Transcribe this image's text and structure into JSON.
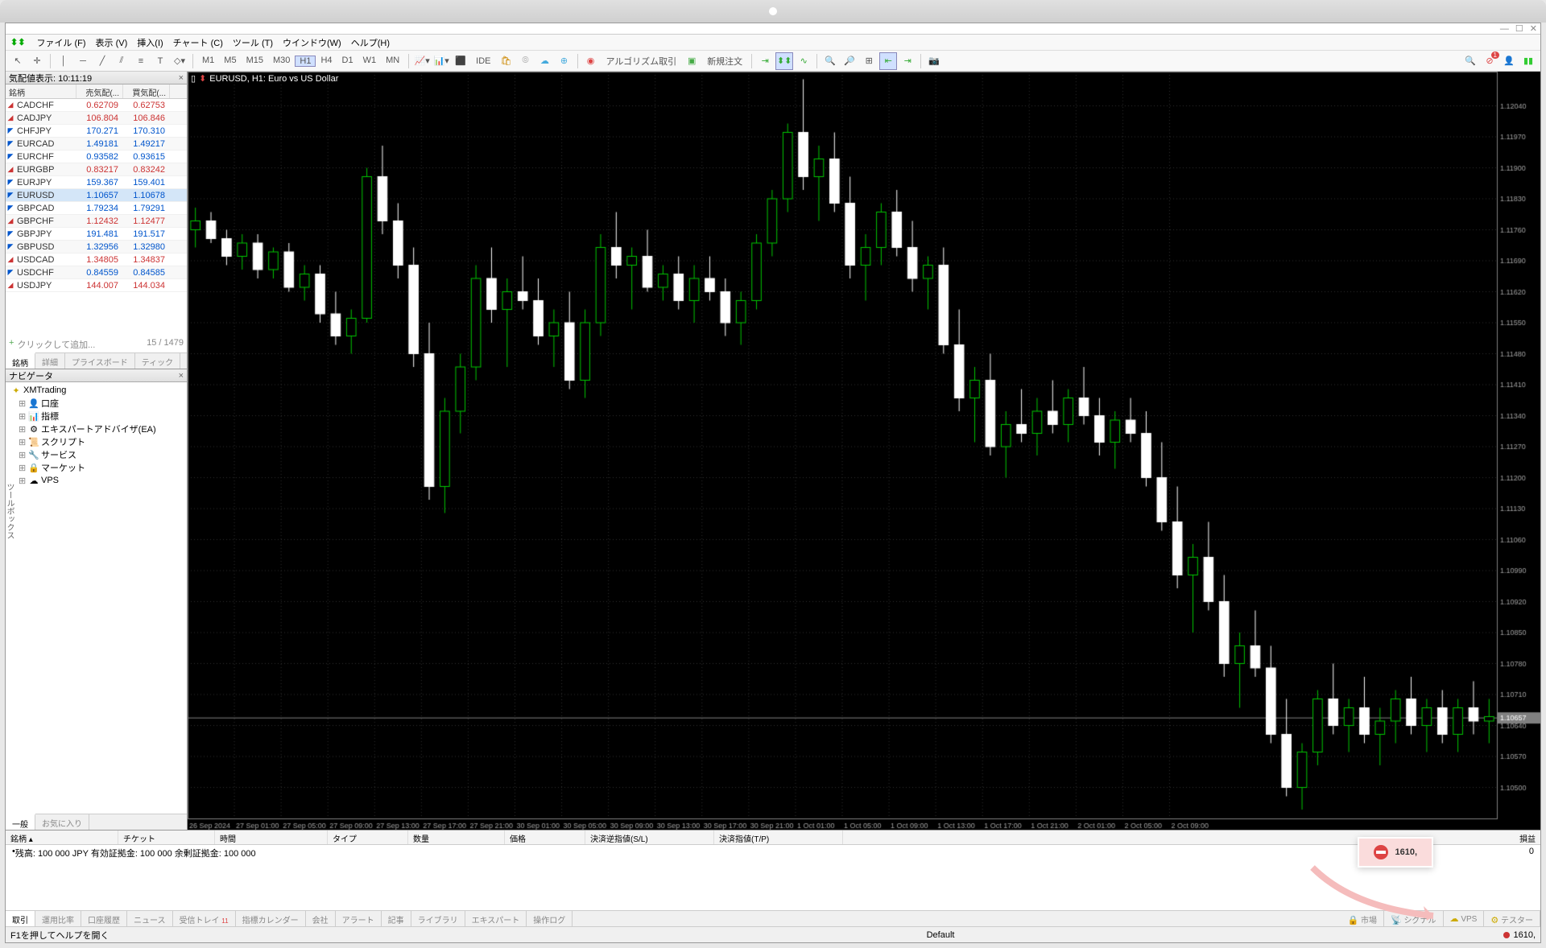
{
  "menu": [
    "ファイル (F)",
    "表示 (V)",
    "挿入(I)",
    "チャート (C)",
    "ツール (T)",
    "ウインドウ(W)",
    "ヘルプ(H)"
  ],
  "timeframes": [
    "M1",
    "M5",
    "M15",
    "M30",
    "H1",
    "H4",
    "D1",
    "W1",
    "MN"
  ],
  "active_tf": "H1",
  "toolbar_right": {
    "algo": "アルゴリズム取引",
    "new_order": "新規注文"
  },
  "market_watch": {
    "title": "気配値表示: 10:11:19",
    "cols": [
      "銘柄",
      "売気配(...",
      "買気配(..."
    ],
    "rows": [
      {
        "s": "CADCHF",
        "b": "0.62709",
        "a": "0.62753",
        "d": "down"
      },
      {
        "s": "CADJPY",
        "b": "106.804",
        "a": "106.846",
        "d": "down"
      },
      {
        "s": "CHFJPY",
        "b": "170.271",
        "a": "170.310",
        "d": "up"
      },
      {
        "s": "EURCAD",
        "b": "1.49181",
        "a": "1.49217",
        "d": "up"
      },
      {
        "s": "EURCHF",
        "b": "0.93582",
        "a": "0.93615",
        "d": "up"
      },
      {
        "s": "EURGBP",
        "b": "0.83217",
        "a": "0.83242",
        "d": "down"
      },
      {
        "s": "EURJPY",
        "b": "159.367",
        "a": "159.401",
        "d": "up"
      },
      {
        "s": "EURUSD",
        "b": "1.10657",
        "a": "1.10678",
        "d": "up",
        "sel": true
      },
      {
        "s": "GBPCAD",
        "b": "1.79234",
        "a": "1.79291",
        "d": "up"
      },
      {
        "s": "GBPCHF",
        "b": "1.12432",
        "a": "1.12477",
        "d": "down"
      },
      {
        "s": "GBPJPY",
        "b": "191.481",
        "a": "191.517",
        "d": "up"
      },
      {
        "s": "GBPUSD",
        "b": "1.32956",
        "a": "1.32980",
        "d": "up"
      },
      {
        "s": "USDCAD",
        "b": "1.34805",
        "a": "1.34837",
        "d": "down"
      },
      {
        "s": "USDCHF",
        "b": "0.84559",
        "a": "0.84585",
        "d": "up"
      },
      {
        "s": "USDJPY",
        "b": "144.007",
        "a": "144.034",
        "d": "down"
      }
    ],
    "add": "クリックして追加...",
    "count": "15 / 1479",
    "tabs": [
      "銘柄",
      "詳細",
      "プライスボード",
      "ティック"
    ]
  },
  "navigator": {
    "title": "ナビゲータ",
    "root": "XMTrading",
    "items": [
      {
        "icon": "👤",
        "label": "口座"
      },
      {
        "icon": "📊",
        "label": "指標"
      },
      {
        "icon": "⚙",
        "label": "エキスパートアドバイザ(EA)"
      },
      {
        "icon": "📜",
        "label": "スクリプト"
      },
      {
        "icon": "🔧",
        "label": "サービス"
      },
      {
        "icon": "🔒",
        "label": "マーケット"
      },
      {
        "icon": "☁",
        "label": "VPS"
      }
    ],
    "tabs": [
      "一般",
      "お気に入り"
    ]
  },
  "chart": {
    "title": "EURUSD, H1: Euro vs US Dollar",
    "bg": "#000000",
    "grid": "#303030",
    "candle_up": "#00c800",
    "candle_up_fill": "#000000",
    "candle_down": "#ffffff",
    "candle_down_fill": "#ffffff",
    "axis_text": "#a0a0a0",
    "ymin": 1.1043,
    "ymax": 1.1211,
    "ylabels": [
      "1.12040",
      "1.11970",
      "1.11900",
      "1.11830",
      "1.11760",
      "1.11690",
      "1.11620",
      "1.11550",
      "1.11480",
      "1.11410",
      "1.11340",
      "1.11270",
      "1.11200",
      "1.11130",
      "1.11060",
      "1.10990",
      "1.10920",
      "1.10850",
      "1.10780",
      "1.10710",
      "1.10640",
      "1.10570",
      "1.10500"
    ],
    "xlabels": [
      "26 Sep 2024",
      "27 Sep 01:00",
      "27 Sep 05:00",
      "27 Sep 09:00",
      "27 Sep 13:00",
      "27 Sep 17:00",
      "27 Sep 21:00",
      "30 Sep 01:00",
      "30 Sep 05:00",
      "30 Sep 09:00",
      "30 Sep 13:00",
      "30 Sep 17:00",
      "30 Sep 21:00",
      "1 Oct 01:00",
      "1 Oct 05:00",
      "1 Oct 09:00",
      "1 Oct 13:00",
      "1 Oct 17:00",
      "1 Oct 21:00",
      "2 Oct 01:00",
      "2 Oct 05:00",
      "2 Oct 09:00"
    ],
    "last_price": "1.10657",
    "candles": [
      [
        1.1176,
        1.1181,
        1.1172,
        1.1178
      ],
      [
        1.1178,
        1.118,
        1.1173,
        1.1174
      ],
      [
        1.1174,
        1.1176,
        1.1168,
        1.117
      ],
      [
        1.117,
        1.1175,
        1.1167,
        1.1173
      ],
      [
        1.1173,
        1.1175,
        1.1165,
        1.1167
      ],
      [
        1.1167,
        1.1172,
        1.1165,
        1.1171
      ],
      [
        1.1171,
        1.1173,
        1.1162,
        1.1163
      ],
      [
        1.1163,
        1.1168,
        1.116,
        1.1166
      ],
      [
        1.1166,
        1.1168,
        1.1155,
        1.1157
      ],
      [
        1.1157,
        1.1162,
        1.115,
        1.1152
      ],
      [
        1.1152,
        1.1158,
        1.1148,
        1.1156
      ],
      [
        1.1156,
        1.119,
        1.1155,
        1.1188
      ],
      [
        1.1188,
        1.1195,
        1.1175,
        1.1178
      ],
      [
        1.1178,
        1.1182,
        1.1165,
        1.1168
      ],
      [
        1.1168,
        1.1172,
        1.1145,
        1.1148
      ],
      [
        1.1148,
        1.1155,
        1.1115,
        1.1118
      ],
      [
        1.1118,
        1.1138,
        1.1112,
        1.1135
      ],
      [
        1.1135,
        1.1148,
        1.113,
        1.1145
      ],
      [
        1.1145,
        1.1168,
        1.1142,
        1.1165
      ],
      [
        1.1165,
        1.1172,
        1.1155,
        1.1158
      ],
      [
        1.1158,
        1.1165,
        1.1145,
        1.1162
      ],
      [
        1.1162,
        1.117,
        1.1158,
        1.116
      ],
      [
        1.116,
        1.1165,
        1.115,
        1.1152
      ],
      [
        1.1152,
        1.1158,
        1.1145,
        1.1155
      ],
      [
        1.1155,
        1.1162,
        1.114,
        1.1142
      ],
      [
        1.1142,
        1.1158,
        1.1138,
        1.1155
      ],
      [
        1.1155,
        1.1175,
        1.1152,
        1.1172
      ],
      [
        1.1172,
        1.118,
        1.1165,
        1.1168
      ],
      [
        1.1168,
        1.1172,
        1.1158,
        1.117
      ],
      [
        1.117,
        1.1176,
        1.1162,
        1.1163
      ],
      [
        1.1163,
        1.1168,
        1.116,
        1.1166
      ],
      [
        1.1166,
        1.117,
        1.1158,
        1.116
      ],
      [
        1.116,
        1.1168,
        1.1155,
        1.1165
      ],
      [
        1.1165,
        1.117,
        1.116,
        1.1162
      ],
      [
        1.1162,
        1.1165,
        1.1152,
        1.1155
      ],
      [
        1.1155,
        1.1162,
        1.115,
        1.116
      ],
      [
        1.116,
        1.1175,
        1.1158,
        1.1173
      ],
      [
        1.1173,
        1.1185,
        1.117,
        1.1183
      ],
      [
        1.1183,
        1.12,
        1.118,
        1.1198
      ],
      [
        1.1198,
        1.121,
        1.1185,
        1.1188
      ],
      [
        1.1188,
        1.1195,
        1.1178,
        1.1192
      ],
      [
        1.1192,
        1.1198,
        1.118,
        1.1182
      ],
      [
        1.1182,
        1.1188,
        1.1165,
        1.1168
      ],
      [
        1.1168,
        1.1175,
        1.116,
        1.1172
      ],
      [
        1.1172,
        1.1182,
        1.1168,
        1.118
      ],
      [
        1.118,
        1.1185,
        1.117,
        1.1172
      ],
      [
        1.1172,
        1.1178,
        1.1162,
        1.1165
      ],
      [
        1.1165,
        1.117,
        1.1158,
        1.1168
      ],
      [
        1.1168,
        1.1172,
        1.1148,
        1.115
      ],
      [
        1.115,
        1.1158,
        1.1135,
        1.1138
      ],
      [
        1.1138,
        1.1145,
        1.1128,
        1.1142
      ],
      [
        1.1142,
        1.1148,
        1.1125,
        1.1127
      ],
      [
        1.1127,
        1.1135,
        1.112,
        1.1132
      ],
      [
        1.1132,
        1.114,
        1.1128,
        1.113
      ],
      [
        1.113,
        1.1138,
        1.1125,
        1.1135
      ],
      [
        1.1135,
        1.1142,
        1.113,
        1.1132
      ],
      [
        1.1132,
        1.114,
        1.1128,
        1.1138
      ],
      [
        1.1138,
        1.1145,
        1.1132,
        1.1134
      ],
      [
        1.1134,
        1.1138,
        1.1125,
        1.1128
      ],
      [
        1.1128,
        1.1135,
        1.1122,
        1.1133
      ],
      [
        1.1133,
        1.1138,
        1.1128,
        1.113
      ],
      [
        1.113,
        1.1135,
        1.1118,
        1.112
      ],
      [
        1.112,
        1.1128,
        1.1108,
        1.111
      ],
      [
        1.111,
        1.1118,
        1.1095,
        1.1098
      ],
      [
        1.1098,
        1.1105,
        1.1085,
        1.1102
      ],
      [
        1.1102,
        1.111,
        1.109,
        1.1092
      ],
      [
        1.1092,
        1.1098,
        1.1075,
        1.1078
      ],
      [
        1.1078,
        1.1085,
        1.1068,
        1.1082
      ],
      [
        1.1082,
        1.109,
        1.1075,
        1.1077
      ],
      [
        1.1077,
        1.1082,
        1.106,
        1.1062
      ],
      [
        1.1062,
        1.107,
        1.1048,
        1.105
      ],
      [
        1.105,
        1.106,
        1.1045,
        1.1058
      ],
      [
        1.1058,
        1.1072,
        1.1055,
        1.107
      ],
      [
        1.107,
        1.1078,
        1.1062,
        1.1064
      ],
      [
        1.1064,
        1.107,
        1.1058,
        1.1068
      ],
      [
        1.1068,
        1.1075,
        1.106,
        1.1062
      ],
      [
        1.1062,
        1.1068,
        1.1055,
        1.1065
      ],
      [
        1.1065,
        1.1072,
        1.106,
        1.107
      ],
      [
        1.107,
        1.1075,
        1.1062,
        1.1064
      ],
      [
        1.1064,
        1.107,
        1.1058,
        1.1068
      ],
      [
        1.1068,
        1.1072,
        1.106,
        1.1062
      ],
      [
        1.1062,
        1.107,
        1.1058,
        1.1068
      ],
      [
        1.1068,
        1.1074,
        1.1062,
        1.1065
      ],
      [
        1.1065,
        1.107,
        1.106,
        1.1066
      ]
    ]
  },
  "terminal": {
    "cols": [
      "銘柄",
      "チケット",
      "時間",
      "タイプ",
      "数量",
      "価格",
      "決済逆指値(S/L)",
      "決済指値(T/P)",
      "損益"
    ],
    "balance": "残高: 100 000 JPY  有効証拠金: 100 000  余剰証拠金: 100 000",
    "balance_val": "0",
    "tabs": [
      "取引",
      "運用比率",
      "口座履歴",
      "ニュース",
      "受信トレイ",
      "指標カレンダー",
      "会社",
      "アラート",
      "記事",
      "ライブラリ",
      "エキスパート",
      "操作ログ"
    ],
    "right_tabs": [
      {
        "icon": "🔒",
        "label": "市場"
      },
      {
        "icon": "📡",
        "label": "シグナル"
      },
      {
        "icon": "☁",
        "label": "VPS"
      },
      {
        "icon": "⚙",
        "label": "テスター"
      }
    ],
    "inbox_badge": "11"
  },
  "status": {
    "help": "F1を押してヘルプを開く",
    "profile": "Default",
    "conn": "1610,"
  },
  "callout": "1610,"
}
